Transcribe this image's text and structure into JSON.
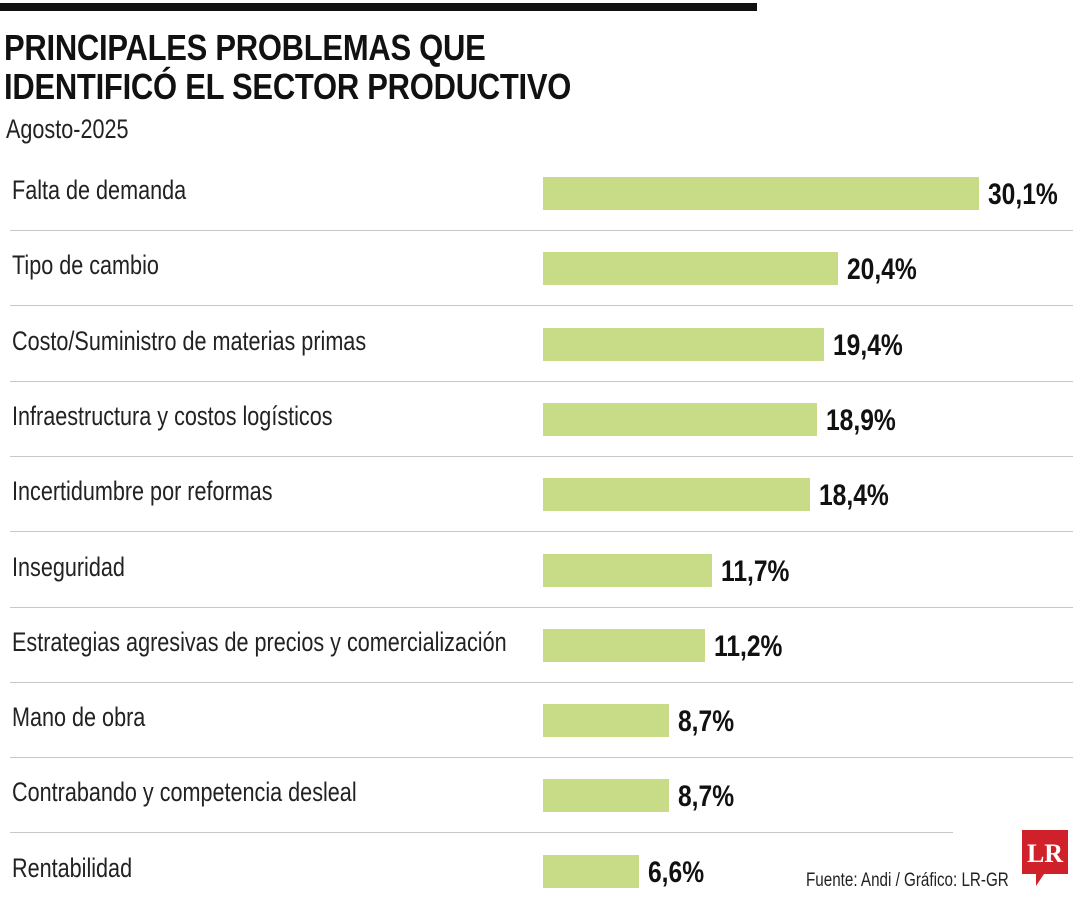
{
  "chart_data": {
    "type": "bar",
    "orientation": "horizontal",
    "title": "PRINCIPALES PROBLEMAS QUE IDENTIFICÓ EL SECTOR PRODUCTIVO",
    "title_lines": [
      "PRINCIPALES PROBLEMAS QUE",
      "IDENTIFICÓ EL SECTOR PRODUCTIVO"
    ],
    "subtitle": "Agosto-2025",
    "categories": [
      "Falta de demanda",
      "Tipo de cambio",
      "Costo/Suministro de materias primas",
      "Infraestructura y costos logísticos",
      "Incertidumbre por reformas",
      "Inseguridad",
      "Estrategias agresivas de precios y comercialización",
      "Mano de obra",
      "Contrabando y competencia desleal",
      "Rentabilidad"
    ],
    "values": [
      30.1,
      20.4,
      19.4,
      18.9,
      18.4,
      11.7,
      11.2,
      8.7,
      8.7,
      6.6
    ],
    "value_labels": [
      "30,1%",
      "20,4%",
      "19,4%",
      "18,9%",
      "18,4%",
      "11,7%",
      "11,2%",
      "8,7%",
      "8,7%",
      "6,6%"
    ],
    "unit": "%",
    "grid": false,
    "bar_color": "#c8db86"
  },
  "footer": {
    "source": "Fuente: Andi / Gráfico: LR-GR",
    "logo_text": "LR",
    "logo_color": "#d0202a"
  }
}
